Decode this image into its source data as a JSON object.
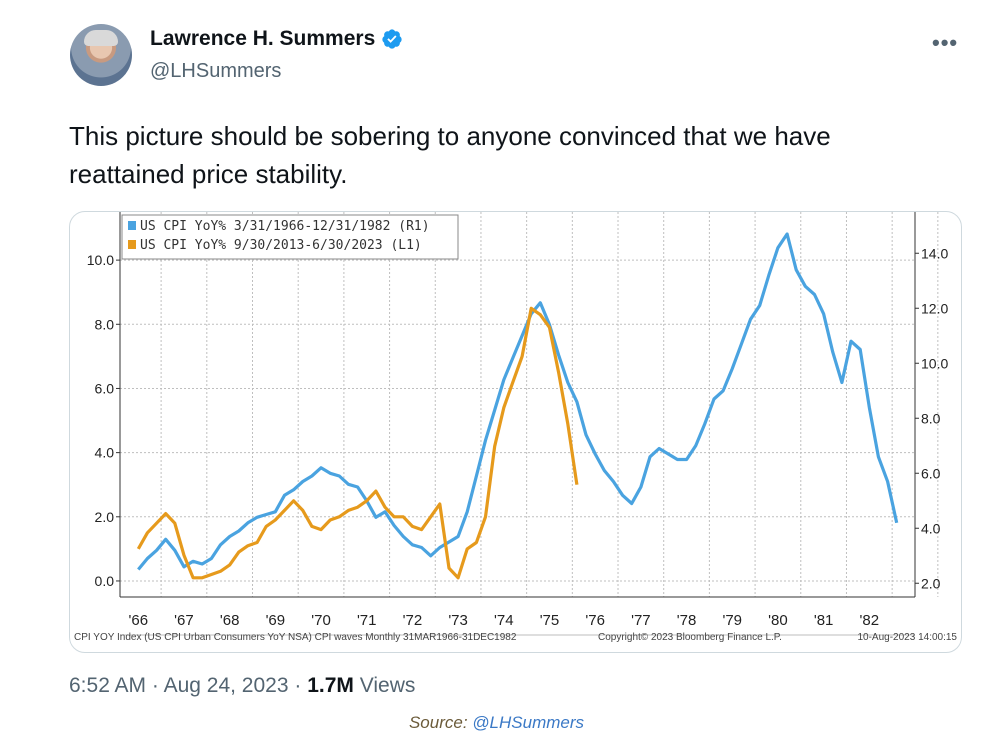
{
  "author": {
    "name": "Lawrence H. Summers",
    "handle": "@LHSummers",
    "verified": true,
    "more_icon": "more-horizontal-icon"
  },
  "tweet": {
    "text": "This picture should be sobering to anyone convinced that we have reattained price stability."
  },
  "meta": {
    "time": "6:52 AM",
    "date": "Aug 24, 2023",
    "views_count": "1.7M",
    "views_label": "Views"
  },
  "source": {
    "prefix": "Source: ",
    "handle": "@LHSummers"
  },
  "chart_data": {
    "type": "line",
    "x_tick_labels": [
      "'66",
      "'67",
      "'68",
      "'69",
      "'70",
      "'71",
      "'72",
      "'73",
      "'74",
      "'75",
      "'76",
      "'77",
      "'78",
      "'79",
      "'80",
      "'81",
      "'82"
    ],
    "left_axis_ticks": [
      "0.0",
      "2.0",
      "4.0",
      "6.0",
      "8.0",
      "10.0"
    ],
    "right_axis_ticks": [
      "2.0",
      "4.0",
      "6.0",
      "8.0",
      "10.0",
      "12.0",
      "14.0"
    ],
    "legend": [
      "US CPI YoY% 3/31/1966-12/31/1982 (R1)",
      "US CPI YoY% 9/30/2013-6/30/2023 (L1)"
    ],
    "footer_left": "CPI YOY Index (US CPI Urban Consumers YoY NSA) CPI waves  Monthly 31MAR1966-31DEC1982",
    "footer_mid": "Copyright© 2023 Bloomberg Finance L.P.",
    "footer_right": "10-Aug-2023 14:00:15",
    "colors": {
      "series1": "#4aa3e0",
      "series2": "#e69a1c",
      "grid": "#bfbfbf",
      "axis": "#333333"
    },
    "series": [
      {
        "name": "US CPI YoY% 3/31/1966-12/31/1982 (R1)",
        "axis": "right",
        "x": [
          1966.0,
          1966.2,
          1966.4,
          1966.6,
          1966.8,
          1967.0,
          1967.2,
          1967.4,
          1967.6,
          1967.8,
          1968.0,
          1968.2,
          1968.4,
          1968.6,
          1968.8,
          1969.0,
          1969.2,
          1969.4,
          1969.6,
          1969.8,
          1970.0,
          1970.2,
          1970.4,
          1970.6,
          1970.8,
          1971.0,
          1971.2,
          1971.4,
          1971.6,
          1971.8,
          1972.0,
          1972.2,
          1972.4,
          1972.6,
          1972.8,
          1973.0,
          1973.2,
          1973.4,
          1973.6,
          1973.8,
          1974.0,
          1974.2,
          1974.4,
          1974.6,
          1974.8,
          1975.0,
          1975.2,
          1975.4,
          1975.6,
          1975.8,
          1976.0,
          1976.2,
          1976.4,
          1976.6,
          1976.8,
          1977.0,
          1977.2,
          1977.4,
          1977.6,
          1977.8,
          1978.0,
          1978.2,
          1978.4,
          1978.6,
          1978.8,
          1979.0,
          1979.2,
          1979.4,
          1979.6,
          1979.8,
          1980.0,
          1980.2,
          1980.4,
          1980.6,
          1980.8,
          1981.0,
          1981.2,
          1981.4,
          1981.6,
          1981.8,
          1982.0,
          1982.2,
          1982.4,
          1982.6
        ],
        "values": [
          2.5,
          2.9,
          3.2,
          3.6,
          3.2,
          2.6,
          2.8,
          2.7,
          2.9,
          3.4,
          3.7,
          3.9,
          4.2,
          4.4,
          4.5,
          4.6,
          5.2,
          5.4,
          5.7,
          5.9,
          6.2,
          6.0,
          5.9,
          5.6,
          5.5,
          5.0,
          4.4,
          4.6,
          4.1,
          3.7,
          3.4,
          3.3,
          3.0,
          3.3,
          3.5,
          3.7,
          4.6,
          5.9,
          7.2,
          8.3,
          9.4,
          10.2,
          11.0,
          11.8,
          12.2,
          11.4,
          10.3,
          9.3,
          8.6,
          7.4,
          6.7,
          6.1,
          5.7,
          5.2,
          4.9,
          5.5,
          6.6,
          6.9,
          6.7,
          6.5,
          6.5,
          7.0,
          7.8,
          8.7,
          9.0,
          9.8,
          10.7,
          11.6,
          12.1,
          13.2,
          14.2,
          14.7,
          13.4,
          12.8,
          12.5,
          11.8,
          10.4,
          9.3,
          10.8,
          10.5,
          8.4,
          6.6,
          5.7,
          4.2
        ]
      },
      {
        "name": "US CPI YoY% 9/30/2013-6/30/2023 (L1)",
        "axis": "left",
        "x": [
          1966.0,
          1966.2,
          1966.4,
          1966.6,
          1966.8,
          1967.0,
          1967.2,
          1967.4,
          1967.6,
          1967.8,
          1968.0,
          1968.2,
          1968.4,
          1968.6,
          1968.8,
          1969.0,
          1969.2,
          1969.4,
          1969.6,
          1969.8,
          1970.0,
          1970.2,
          1970.4,
          1970.6,
          1970.8,
          1971.0,
          1971.2,
          1971.4,
          1971.6,
          1971.8,
          1972.0,
          1972.2,
          1972.4,
          1972.6,
          1972.8,
          1973.0,
          1973.2,
          1973.4,
          1973.6,
          1973.8,
          1974.0,
          1974.2,
          1974.4,
          1974.6,
          1974.8,
          1975.0,
          1975.2,
          1975.4,
          1975.6
        ],
        "values": [
          1.0,
          1.5,
          1.8,
          2.1,
          1.8,
          0.8,
          0.1,
          0.1,
          0.2,
          0.3,
          0.5,
          0.9,
          1.1,
          1.2,
          1.7,
          1.9,
          2.2,
          2.5,
          2.2,
          1.7,
          1.6,
          1.9,
          2.0,
          2.2,
          2.3,
          2.5,
          2.8,
          2.3,
          2.0,
          2.0,
          1.7,
          1.6,
          2.0,
          2.4,
          0.4,
          0.1,
          1.0,
          1.2,
          2.0,
          4.2,
          5.4,
          6.2,
          7.0,
          8.5,
          8.3,
          7.9,
          6.5,
          4.9,
          3.0
        ]
      }
    ],
    "left_ylim": [
      -0.5,
      11.5
    ],
    "right_ylim": [
      1.5,
      15.5
    ],
    "xlim": [
      1965.6,
      1983.0
    ]
  }
}
